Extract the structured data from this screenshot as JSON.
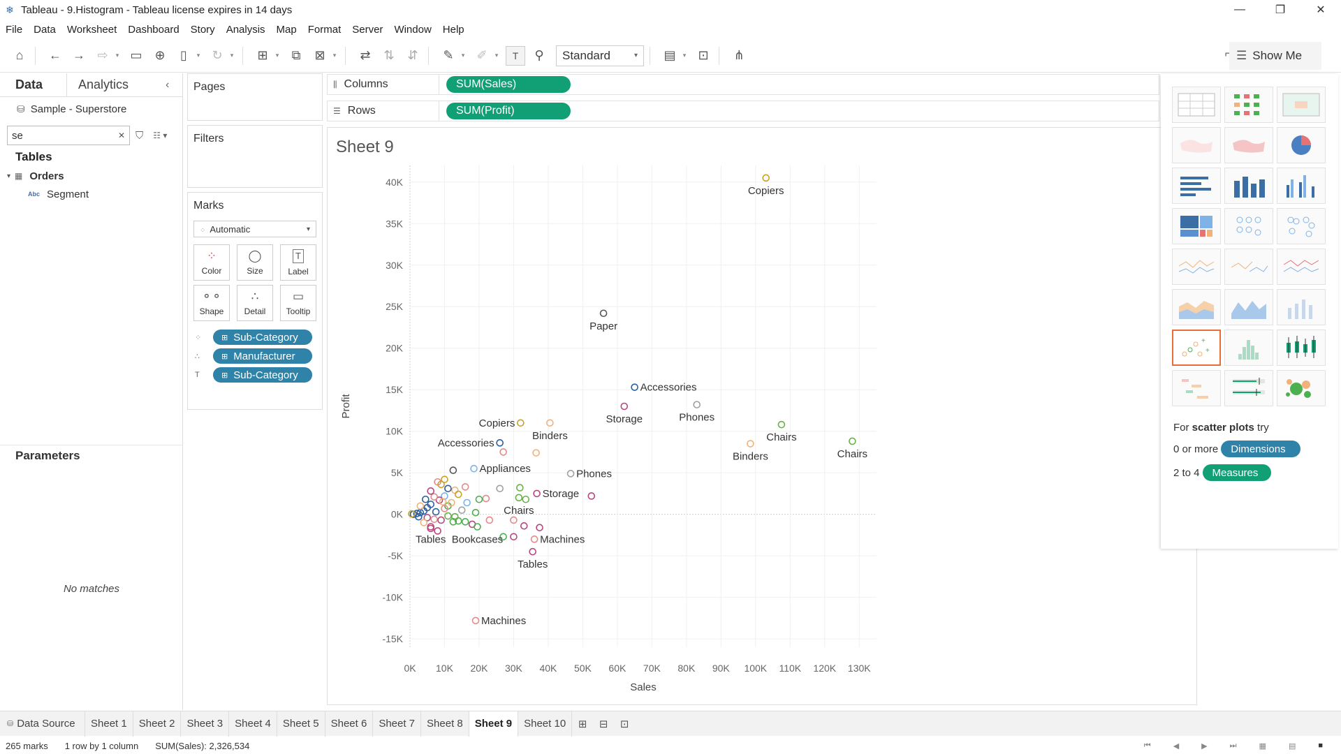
{
  "window": {
    "title": "Tableau - 9.Histogram - Tableau license expires in 14 days",
    "controls": {
      "minimize": "—",
      "restore": "❐",
      "close": "✕"
    }
  },
  "menu": [
    "File",
    "Data",
    "Worksheet",
    "Dashboard",
    "Story",
    "Analysis",
    "Map",
    "Format",
    "Server",
    "Window",
    "Help"
  ],
  "toolbar": {
    "fit_select": "Standard",
    "show_me": "Show Me"
  },
  "data_pane": {
    "tabs": {
      "data": "Data",
      "analytics": "Analytics"
    },
    "datasource": "Sample - Superstore",
    "search_value": "se",
    "tables_title": "Tables",
    "table_name": "Orders",
    "field_type": "Abc",
    "field_name": "Segment",
    "parameters_title": "Parameters",
    "no_matches": "No matches"
  },
  "cards": {
    "pages": "Pages",
    "filters": "Filters",
    "marks": "Marks",
    "mark_type": "Automatic",
    "mark_buttons": {
      "color": "Color",
      "size": "Size",
      "label": "Label",
      "shape": "Shape",
      "detail": "Detail",
      "tooltip": "Tooltip"
    },
    "mark_pills": [
      "Sub-Category",
      "Manufacturer",
      "Sub-Category"
    ]
  },
  "shelves": {
    "columns_label": "Columns",
    "columns_pill": "SUM(Sales)",
    "rows_label": "Rows",
    "rows_pill": "SUM(Profit)"
  },
  "sheet_title": "Sheet 9",
  "chart_data": {
    "type": "scatter",
    "xlabel": "Sales",
    "ylabel": "Profit",
    "xlim": [
      0,
      135000
    ],
    "ylim": [
      -16000,
      42000
    ],
    "xticks": [
      0,
      10000,
      20000,
      30000,
      40000,
      50000,
      60000,
      70000,
      80000,
      90000,
      100000,
      110000,
      120000,
      130000
    ],
    "xtick_labels": [
      "0K",
      "10K",
      "20K",
      "30K",
      "40K",
      "50K",
      "60K",
      "70K",
      "80K",
      "90K",
      "100K",
      "110K",
      "120K",
      "130K"
    ],
    "yticks": [
      -15000,
      -10000,
      -5000,
      0,
      5000,
      10000,
      15000,
      20000,
      25000,
      30000,
      35000,
      40000
    ],
    "ytick_labels": [
      "-15K",
      "-10K",
      "-5K",
      "0K",
      "5K",
      "10K",
      "15K",
      "20K",
      "25K",
      "30K",
      "35K",
      "40K"
    ],
    "grid": true,
    "labeled_points": [
      {
        "x": 103000,
        "y": 40500,
        "label": "Copiers",
        "color": "#c9a227",
        "pos": "below"
      },
      {
        "x": 56000,
        "y": 24200,
        "label": "Paper",
        "color": "#555555",
        "pos": "below"
      },
      {
        "x": 65000,
        "y": 15300,
        "label": "Accessories",
        "color": "#2b5f9e",
        "pos": "right"
      },
      {
        "x": 62000,
        "y": 13000,
        "label": "Storage",
        "color": "#b5487f",
        "pos": "below"
      },
      {
        "x": 83000,
        "y": 13200,
        "label": "Phones",
        "color": "#a0a0a0",
        "pos": "below"
      },
      {
        "x": 107500,
        "y": 10800,
        "label": "Chairs",
        "color": "#6ab04c",
        "pos": "below"
      },
      {
        "x": 98500,
        "y": 8500,
        "label": "Binders",
        "color": "#f0b27a",
        "pos": "below"
      },
      {
        "x": 128000,
        "y": 8800,
        "label": "Chairs",
        "color": "#6ab04c",
        "pos": "below"
      },
      {
        "x": 32000,
        "y": 11000,
        "label": "Copiers",
        "color": "#c9a227",
        "pos": "left"
      },
      {
        "x": 40500,
        "y": 11000,
        "label": "Binders",
        "color": "#f0b27a",
        "pos": "below"
      },
      {
        "x": 26000,
        "y": 8600,
        "label": "Accessories",
        "color": "#2b5f9e",
        "pos": "left"
      },
      {
        "x": 18500,
        "y": 5500,
        "label": "Appliances",
        "color": "#7fb3e6",
        "pos": "right"
      },
      {
        "x": 46500,
        "y": 4900,
        "label": "Phones",
        "color": "#a0a0a0",
        "pos": "right"
      },
      {
        "x": 36700,
        "y": 2500,
        "label": "Storage",
        "color": "#b5487f",
        "pos": "right"
      },
      {
        "x": 31500,
        "y": 2000,
        "label": "Chairs",
        "color": "#6ab04c",
        "pos": "below"
      },
      {
        "x": 36000,
        "y": -3000,
        "label": "Machines",
        "color": "#e38b8b",
        "pos": "right"
      },
      {
        "x": 35500,
        "y": -4500,
        "label": "Tables",
        "color": "#b5487f",
        "pos": "below"
      },
      {
        "x": 19000,
        "y": -12800,
        "label": "Machines",
        "color": "#e38b8b",
        "pos": "right"
      },
      {
        "x": 6000,
        "y": -1500,
        "label": "Tables",
        "color": "#b5487f",
        "pos": "below"
      },
      {
        "x": 19500,
        "y": -1500,
        "label": "Bookcases",
        "color": "#4caf50",
        "pos": "below"
      }
    ],
    "points": [
      {
        "x": 27000,
        "y": 7500,
        "color": "#e38b8b"
      },
      {
        "x": 36500,
        "y": 7400,
        "color": "#f0b27a"
      },
      {
        "x": 12500,
        "y": 5300,
        "color": "#555555"
      },
      {
        "x": 52500,
        "y": 2200,
        "color": "#b5487f"
      },
      {
        "x": 26000,
        "y": 3100,
        "color": "#a0a0a0"
      },
      {
        "x": 31800,
        "y": 3200,
        "color": "#6ab04c"
      },
      {
        "x": 33500,
        "y": 1800,
        "color": "#6ab04c"
      },
      {
        "x": 22000,
        "y": 1900,
        "color": "#e38b8b"
      },
      {
        "x": 37500,
        "y": -1600,
        "color": "#b5487f"
      },
      {
        "x": 30000,
        "y": -700,
        "color": "#e38b8b"
      },
      {
        "x": 33000,
        "y": -1400,
        "color": "#b5487f"
      },
      {
        "x": 27000,
        "y": -2700,
        "color": "#4caf50"
      },
      {
        "x": 30000,
        "y": -2700,
        "color": "#b5487f"
      },
      {
        "x": 23000,
        "y": -700,
        "color": "#e38b8b"
      },
      {
        "x": 19000,
        "y": 200,
        "color": "#4caf50"
      },
      {
        "x": 18000,
        "y": -1200,
        "color": "#b5487f"
      },
      {
        "x": 16000,
        "y": -900,
        "color": "#4caf50"
      },
      {
        "x": 14000,
        "y": -800,
        "color": "#4caf50"
      },
      {
        "x": 12500,
        "y": -900,
        "color": "#4caf50"
      },
      {
        "x": 11000,
        "y": 1000,
        "color": "#4caf50"
      },
      {
        "x": 16000,
        "y": 3300,
        "color": "#e38b8b"
      },
      {
        "x": 13000,
        "y": 2900,
        "color": "#f0b27a"
      },
      {
        "x": 10000,
        "y": 4200,
        "color": "#c9a227"
      },
      {
        "x": 8000,
        "y": 3900,
        "color": "#e38b8b"
      },
      {
        "x": 11000,
        "y": 3100,
        "color": "#2b5f9e"
      },
      {
        "x": 10000,
        "y": 2200,
        "color": "#7fb3e6"
      },
      {
        "x": 8500,
        "y": 1700,
        "color": "#b5487f"
      },
      {
        "x": 7000,
        "y": 2100,
        "color": "#e38b8b"
      },
      {
        "x": 6000,
        "y": 1200,
        "color": "#2b5f9e"
      },
      {
        "x": 5000,
        "y": 800,
        "color": "#2b5f9e"
      },
      {
        "x": 4000,
        "y": 400,
        "color": "#2b5f9e"
      },
      {
        "x": 3000,
        "y": 200,
        "color": "#2b5f9e"
      },
      {
        "x": 2000,
        "y": 100,
        "color": "#2b5f9e"
      },
      {
        "x": 1000,
        "y": 0,
        "color": "#2b5f9e"
      },
      {
        "x": 500,
        "y": 50,
        "color": "#c9a227"
      },
      {
        "x": 5000,
        "y": -400,
        "color": "#b5487f"
      },
      {
        "x": 7000,
        "y": -600,
        "color": "#e38b8b"
      },
      {
        "x": 9000,
        "y": -700,
        "color": "#b5487f"
      },
      {
        "x": 6000,
        "y": -1700,
        "color": "#b5487f"
      },
      {
        "x": 8000,
        "y": -2000,
        "color": "#b5487f"
      },
      {
        "x": 4000,
        "y": -1000,
        "color": "#f0b27a"
      },
      {
        "x": 10000,
        "y": 700,
        "color": "#e38b8b"
      },
      {
        "x": 12000,
        "y": 1400,
        "color": "#f0b27a"
      },
      {
        "x": 16500,
        "y": 1400,
        "color": "#7fb3e6"
      },
      {
        "x": 20000,
        "y": 1800,
        "color": "#4caf50"
      },
      {
        "x": 14000,
        "y": 2400,
        "color": "#c9a227"
      },
      {
        "x": 9000,
        "y": 3600,
        "color": "#c9a227"
      },
      {
        "x": 6000,
        "y": 2800,
        "color": "#b5487f"
      },
      {
        "x": 3000,
        "y": 1000,
        "color": "#f0b27a"
      },
      {
        "x": 2500,
        "y": -300,
        "color": "#2b5f9e"
      },
      {
        "x": 7500,
        "y": 300,
        "color": "#2b5f9e"
      },
      {
        "x": 11000,
        "y": -200,
        "color": "#6ab04c"
      },
      {
        "x": 13000,
        "y": -300,
        "color": "#6ab04c"
      },
      {
        "x": 15000,
        "y": 500,
        "color": "#a0a0a0"
      },
      {
        "x": 4500,
        "y": 1800,
        "color": "#2b5f9e"
      },
      {
        "x": 9500,
        "y": 1500,
        "color": "#f0b27a"
      }
    ]
  },
  "show_me": {
    "hint_prefix": "For",
    "hint_bold": "scatter plots",
    "hint_suffix": "try",
    "row1_text": "0 or more",
    "row1_pill": "Dimensions",
    "row2_text": "2 to 4",
    "row2_pill": "Measures"
  },
  "tabs": {
    "data_source": "Data Source",
    "sheets": [
      "Sheet 1",
      "Sheet 2",
      "Sheet 3",
      "Sheet 4",
      "Sheet 5",
      "Sheet 6",
      "Sheet 7",
      "Sheet 8",
      "Sheet 9",
      "Sheet 10"
    ],
    "active": "Sheet 9"
  },
  "status": {
    "marks": "265 marks",
    "rows_cols": "1 row by 1 column",
    "sum": "SUM(Sales): 2,326,534"
  },
  "colors": {
    "dimension_pill": "#2f83a8",
    "measure_pill": "#11a075",
    "selected_chart": "#e76f36"
  }
}
